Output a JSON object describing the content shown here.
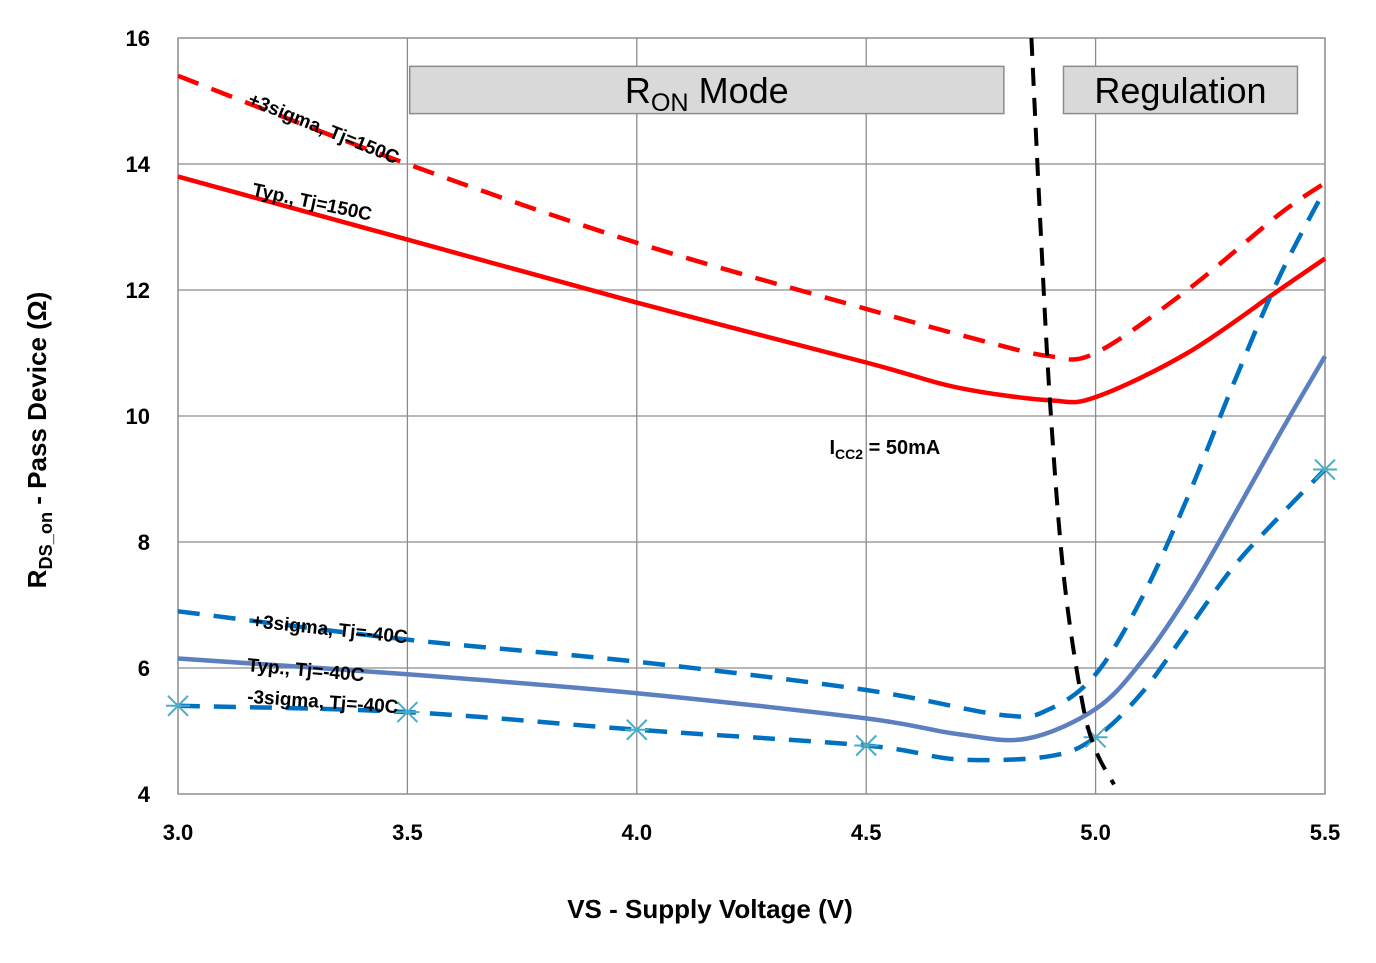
{
  "chart_data": {
    "type": "line",
    "x_label": "VS - Supply Voltage (V)",
    "y_label_main": "R",
    "y_label_sub": "DS_on",
    "y_label_rest": " - Pass Device (Ω)",
    "xlim": [
      3.0,
      5.5
    ],
    "ylim": [
      4,
      16
    ],
    "x_ticks": [
      "3.0",
      "3.5",
      "4.0",
      "4.5",
      "5.0",
      "5.5"
    ],
    "x_tick_values": [
      3.0,
      3.5,
      4.0,
      4.5,
      5.0,
      5.5
    ],
    "y_ticks": [
      "4",
      "6",
      "8",
      "10",
      "12",
      "14",
      "16"
    ],
    "y_tick_values": [
      4,
      6,
      8,
      10,
      12,
      14,
      16
    ],
    "grid": true,
    "series": [
      {
        "name": "+3sigma, Tj=150C",
        "color": "#ff0000",
        "style": "dashed",
        "marker": "none",
        "x": [
          3.0,
          3.5,
          4.0,
          4.5,
          4.75,
          4.9,
          5.0,
          5.2,
          5.4,
          5.5
        ],
        "y": [
          15.4,
          14.0,
          12.75,
          11.7,
          11.2,
          10.95,
          11.0,
          12.0,
          13.2,
          13.7
        ]
      },
      {
        "name": "Typ., Tj=150C",
        "color": "#ff0000",
        "style": "solid",
        "marker": "none",
        "x": [
          3.0,
          3.5,
          4.0,
          4.5,
          4.7,
          4.9,
          5.0,
          5.2,
          5.4,
          5.5
        ],
        "y": [
          13.8,
          12.8,
          11.8,
          10.85,
          10.45,
          10.25,
          10.3,
          11.0,
          12.0,
          12.5
        ]
      },
      {
        "name": "+3sigma, Tj=-40C",
        "color": "#0070c0",
        "style": "dashed",
        "marker": "none",
        "x": [
          3.0,
          3.5,
          4.0,
          4.5,
          4.8,
          4.9,
          5.0,
          5.1,
          5.2,
          5.3,
          5.4,
          5.5
        ],
        "y": [
          6.9,
          6.45,
          6.1,
          5.65,
          5.25,
          5.35,
          5.9,
          7.1,
          8.7,
          10.5,
          12.2,
          13.6
        ]
      },
      {
        "name": "Typ., Tj=-40C",
        "color": "#5b7fbf",
        "style": "solid",
        "marker": "none",
        "x": [
          3.0,
          3.5,
          4.0,
          4.5,
          4.7,
          4.85,
          5.0,
          5.1,
          5.2,
          5.3,
          5.4,
          5.5
        ],
        "y": [
          6.15,
          5.9,
          5.6,
          5.2,
          4.95,
          4.88,
          5.35,
          6.1,
          7.15,
          8.4,
          9.7,
          10.95
        ]
      },
      {
        "name": "-3sigma, Tj=-40C",
        "color": "#0070c0",
        "style": "dashed",
        "marker": "x",
        "x": [
          3.0,
          3.5,
          4.0,
          4.5,
          4.7,
          4.9,
          5.0,
          5.1,
          5.2,
          5.3,
          5.4,
          5.5
        ],
        "y": [
          5.4,
          5.3,
          5.02,
          4.77,
          4.55,
          4.6,
          4.9,
          5.6,
          6.6,
          7.6,
          8.4,
          9.15
        ]
      },
      {
        "name": "ICC2 = 50mA boundary",
        "color": "#000000",
        "style": "dashed",
        "marker": "none",
        "x": [
          4.86,
          4.88,
          4.9,
          4.93,
          4.97,
          5.0,
          5.04
        ],
        "y": [
          16.0,
          13.0,
          10.3,
          7.5,
          5.5,
          4.7,
          4.15
        ]
      }
    ],
    "curve_labels": [
      {
        "text": "+3sigma, Tj=150C",
        "x": 3.15,
        "y": 14.95,
        "angle": 22
      },
      {
        "text": "Typ., Tj=150C",
        "x": 3.16,
        "y": 13.5,
        "angle": 12
      },
      {
        "text": "+3sigma, Tj=-40C",
        "x": 3.16,
        "y": 6.65,
        "angle": 6
      },
      {
        "text": "Typ., Tj=-40C",
        "x": 3.15,
        "y": 5.95,
        "angle": 5
      },
      {
        "text": "-3sigma, Tj=-40C",
        "x": 3.15,
        "y": 5.45,
        "angle": 4
      }
    ],
    "regions": [
      {
        "main": "R",
        "sub": "ON",
        "rest": " Mode",
        "x0": 3.505,
        "x1": 4.8,
        "y0": 14.8,
        "y1": 15.55
      },
      {
        "main": "Regulation",
        "sub": "",
        "rest": "",
        "x0": 4.93,
        "x1": 5.44,
        "y0": 14.8,
        "y1": 15.55
      }
    ],
    "annotation": {
      "main": "I",
      "sub": "CC2",
      "rest": " = 50mA",
      "x": 4.42,
      "y": 9.4
    }
  }
}
